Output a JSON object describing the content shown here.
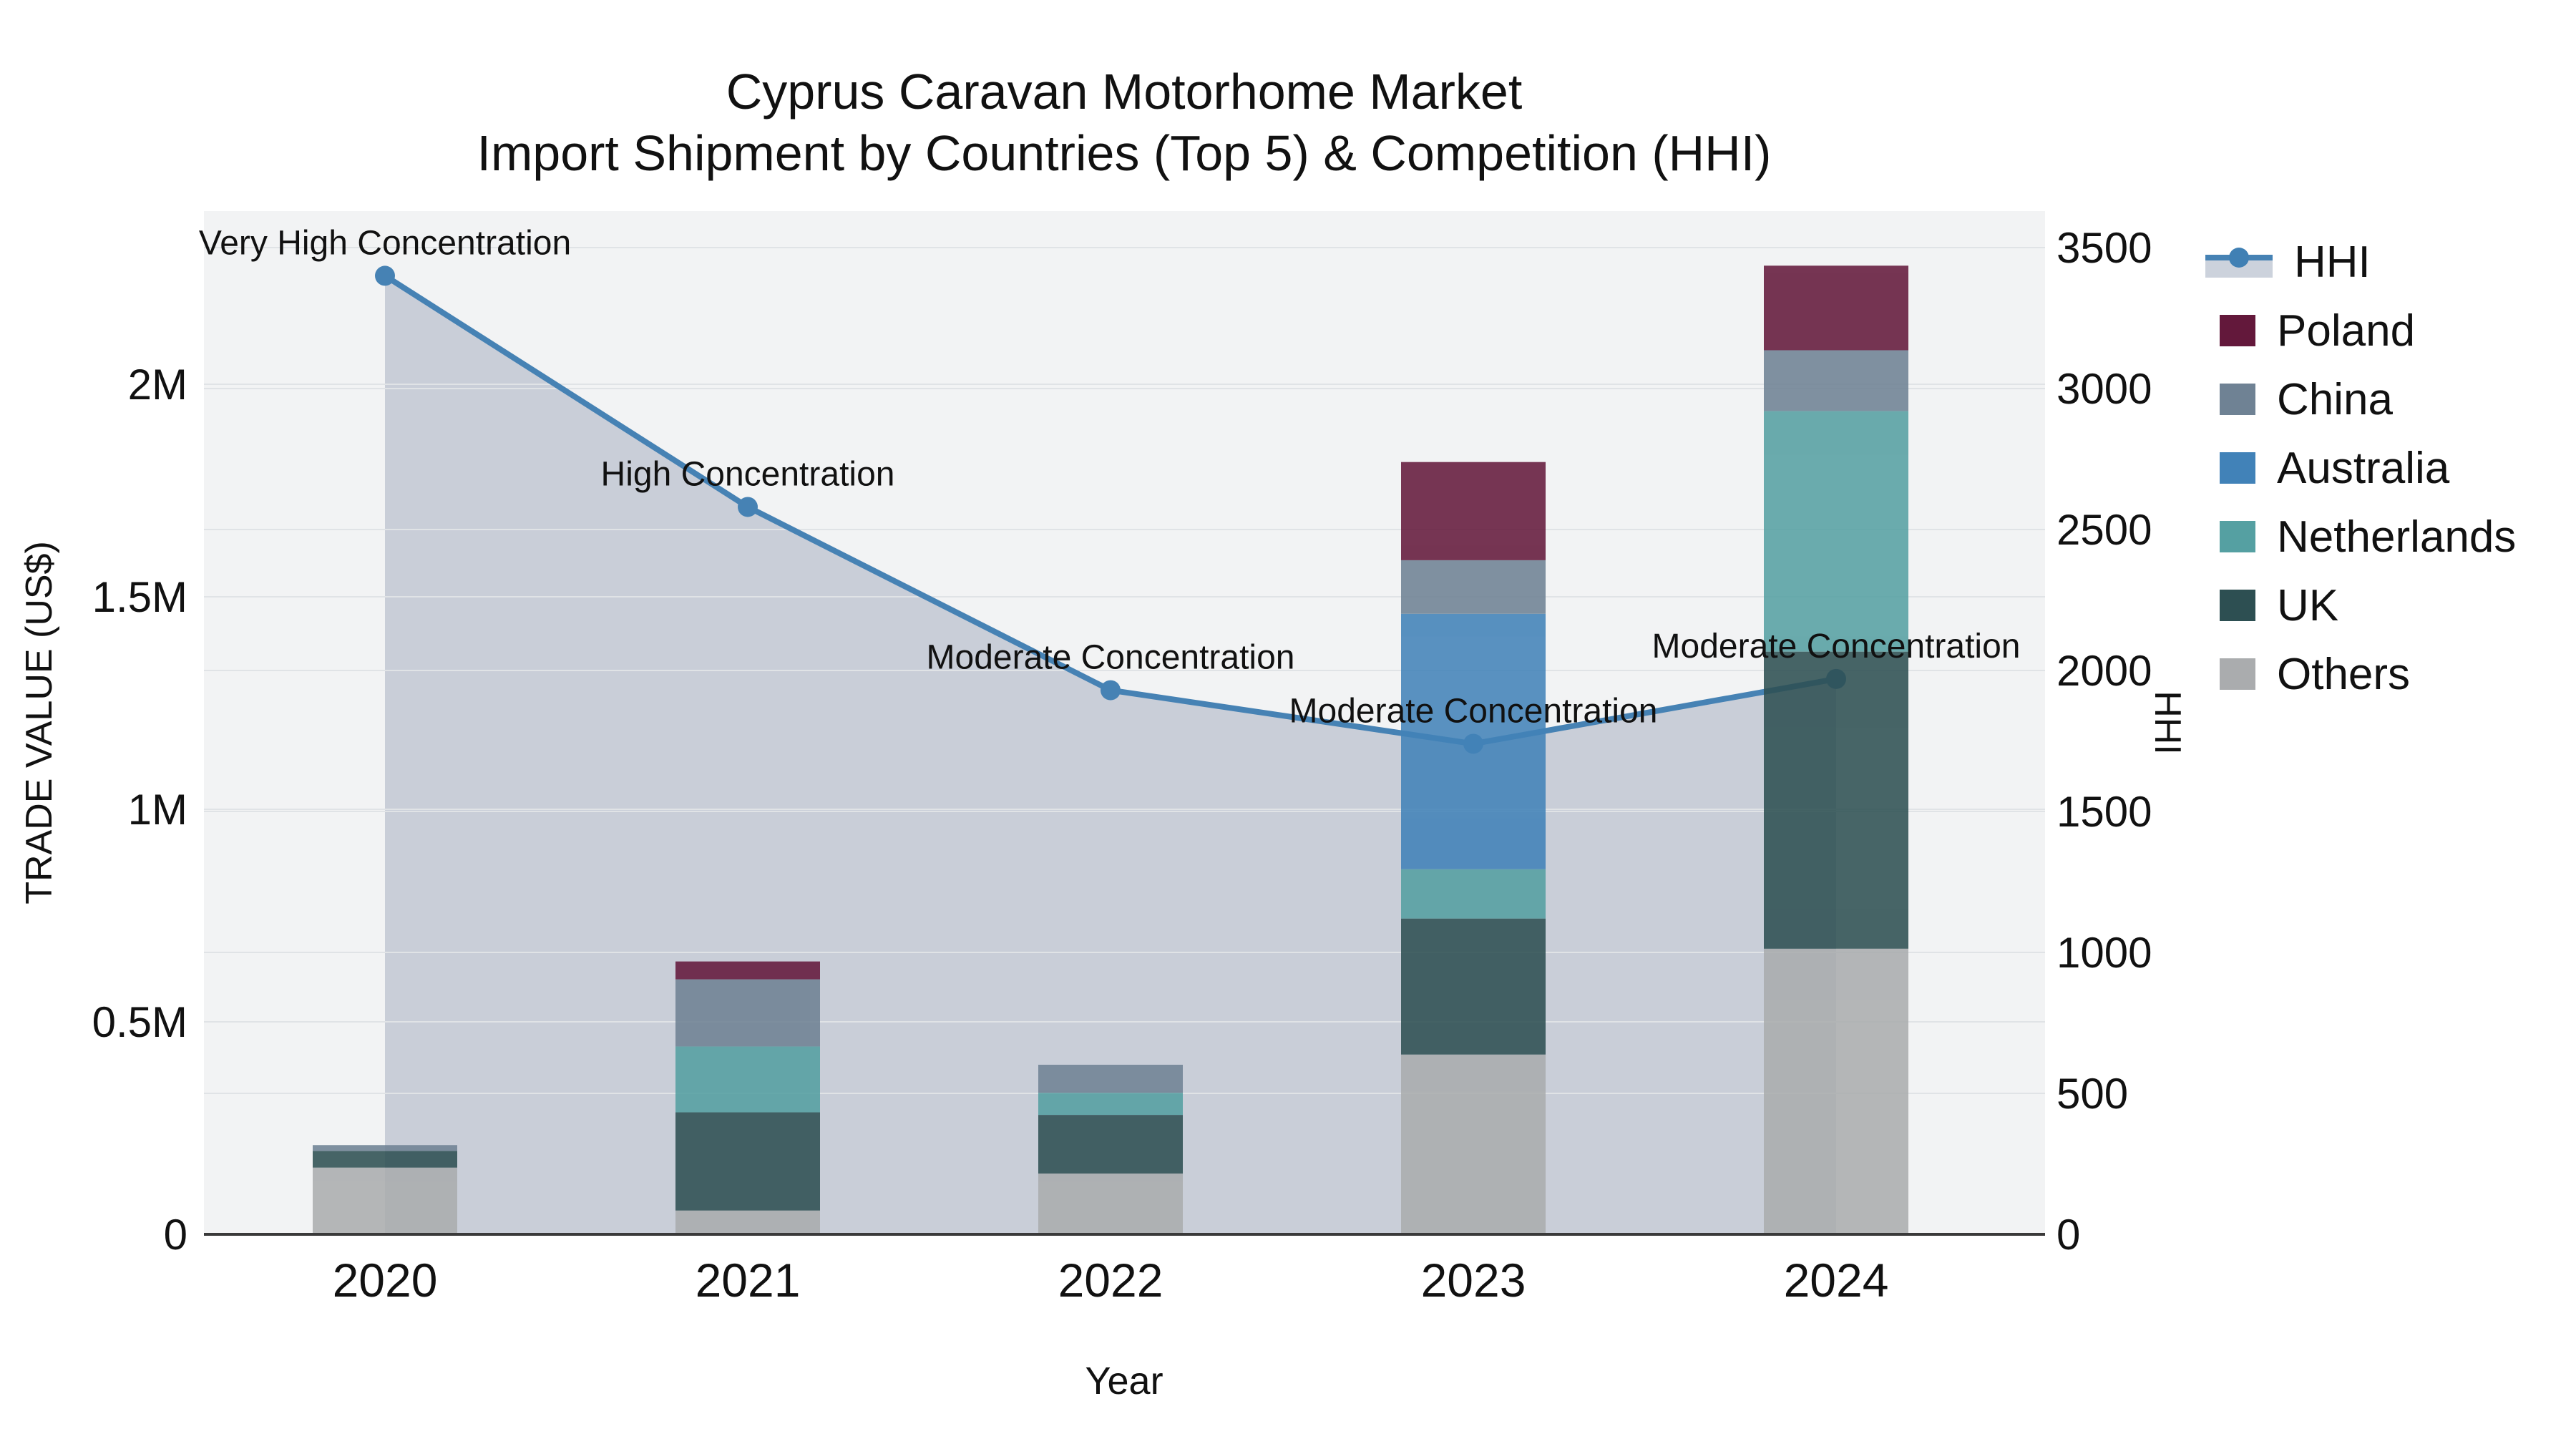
{
  "title": {
    "line1": "Cyprus Caravan Motorhome Market",
    "line2": "Import Shipment by Countries (Top 5) & Competition (HHI)"
  },
  "axes": {
    "y_left": {
      "title": "TRADE VALUE (US$)"
    },
    "y_right": {
      "title": "HHI"
    },
    "x": {
      "title": "Year"
    }
  },
  "legend": {
    "items": [
      {
        "label": "HHI",
        "type": "line",
        "color": "#4682b4"
      },
      {
        "label": "Poland",
        "type": "box",
        "color": "#63183b"
      },
      {
        "label": "China",
        "type": "box",
        "color": "#6f8294"
      },
      {
        "label": "Australia",
        "type": "box",
        "color": "#4182b8"
      },
      {
        "label": "Netherlands",
        "type": "box",
        "color": "#55a0a2"
      },
      {
        "label": "UK",
        "type": "box",
        "color": "#2d4f52"
      },
      {
        "label": "Others",
        "type": "box",
        "color": "#aaacae"
      }
    ]
  },
  "chart_data": {
    "type": "bar",
    "subtype": "stacked-bars-with-line",
    "x": [
      "2020",
      "2021",
      "2022",
      "2023",
      "2024"
    ],
    "series": [
      {
        "name": "Poland",
        "axis": "left",
        "color": "#63183b",
        "values": [
          0,
          42000,
          0,
          231000,
          199000
        ]
      },
      {
        "name": "China",
        "axis": "left",
        "color": "#6f8294",
        "values": [
          14000,
          158000,
          66000,
          126000,
          143000
        ]
      },
      {
        "name": "Australia",
        "axis": "left",
        "color": "#4182b8",
        "values": [
          0,
          0,
          0,
          601000,
          0
        ]
      },
      {
        "name": "Netherlands",
        "axis": "left",
        "color": "#55a0a2",
        "values": [
          0,
          155000,
          52000,
          116000,
          566000
        ]
      },
      {
        "name": "UK",
        "axis": "left",
        "color": "#2d4f52",
        "values": [
          39000,
          231000,
          138000,
          320000,
          699000
        ]
      },
      {
        "name": "Others",
        "axis": "left",
        "color": "#aaacae",
        "values": [
          157000,
          56000,
          143000,
          423000,
          672000
        ]
      }
    ],
    "stack_order_bottom_to_top": [
      "Others",
      "UK",
      "Netherlands",
      "Australia",
      "China",
      "Poland"
    ],
    "line": {
      "name": "HHI",
      "axis": "right",
      "color": "#4682b4",
      "fill_color": "#c9ced8",
      "values": [
        3400,
        2580,
        1930,
        1740,
        1970
      ]
    },
    "annotations": [
      "Very High Concentration",
      "High Concentration",
      "Moderate Concentration",
      "Moderate Concentration",
      "Moderate Concentration"
    ],
    "y_left_tick_labels": [
      "0",
      "0.5M",
      "1M",
      "1.5M",
      "2M"
    ],
    "y_left_tick_values": [
      0,
      500000,
      1000000,
      1500000,
      2000000
    ],
    "y_left_range": [
      0,
      2407000
    ],
    "y_right_tick_labels": [
      "0",
      "500",
      "1000",
      "1500",
      "2000",
      "2500",
      "3000",
      "3500"
    ],
    "y_right_tick_values": [
      0,
      500,
      1000,
      1500,
      2000,
      2500,
      3000,
      3500
    ],
    "y_right_range": [
      0,
      3629
    ],
    "title": "Cyprus Caravan Motorhome Market — Import Shipment by Countries (Top 5) & Competition (HHI)",
    "xlabel": "Year",
    "ylabel_left": "TRADE VALUE (US$)",
    "ylabel_right": "HHI",
    "grid": true,
    "legend_position": "right"
  },
  "style": {
    "plot_bg": "#f2f3f4",
    "grid_color": "#e0e3e6",
    "axis_line_color": "#3a3a3a",
    "text_color": "#111111"
  }
}
